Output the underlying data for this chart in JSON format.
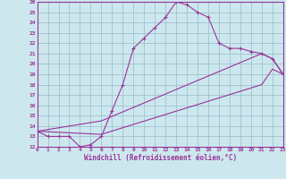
{
  "xlabel": "Windchill (Refroidissement éolien,°C)",
  "bg_color": "#cce8ee",
  "line_color": "#993399",
  "grid_color": "#99bbcc",
  "xmin": 0,
  "xmax": 23,
  "ymin": 12,
  "ymax": 26,
  "curve1_x": [
    0,
    1,
    2,
    3,
    4,
    5,
    6,
    7,
    8,
    9,
    10,
    11,
    12,
    13,
    14,
    15,
    16,
    17,
    18,
    19,
    20,
    21,
    22,
    23
  ],
  "curve1_y": [
    13.5,
    13.0,
    13.0,
    13.0,
    12.0,
    12.2,
    13.0,
    15.5,
    18.0,
    21.5,
    22.5,
    23.5,
    24.5,
    26.0,
    25.7,
    25.0,
    24.5,
    22.0,
    21.5,
    21.5,
    21.2,
    21.0,
    20.5,
    19.0
  ],
  "curve2_x": [
    0,
    6,
    21,
    22,
    23
  ],
  "curve2_y": [
    13.5,
    14.5,
    21.0,
    20.5,
    19.0
  ],
  "curve3_x": [
    0,
    6,
    21,
    22,
    23
  ],
  "curve3_y": [
    13.5,
    13.2,
    18.0,
    19.5,
    19.0
  ],
  "xtick_labels": [
    "0",
    "1",
    "2",
    "3",
    "4",
    "5",
    "6",
    "7",
    "8",
    "9",
    "10",
    "11",
    "12",
    "13",
    "14",
    "15",
    "16",
    "17",
    "18",
    "19",
    "20",
    "21",
    "22",
    "23"
  ],
  "ytick_labels": [
    "12",
    "13",
    "14",
    "15",
    "16",
    "17",
    "18",
    "19",
    "20",
    "21",
    "22",
    "23",
    "24",
    "25",
    "26"
  ]
}
